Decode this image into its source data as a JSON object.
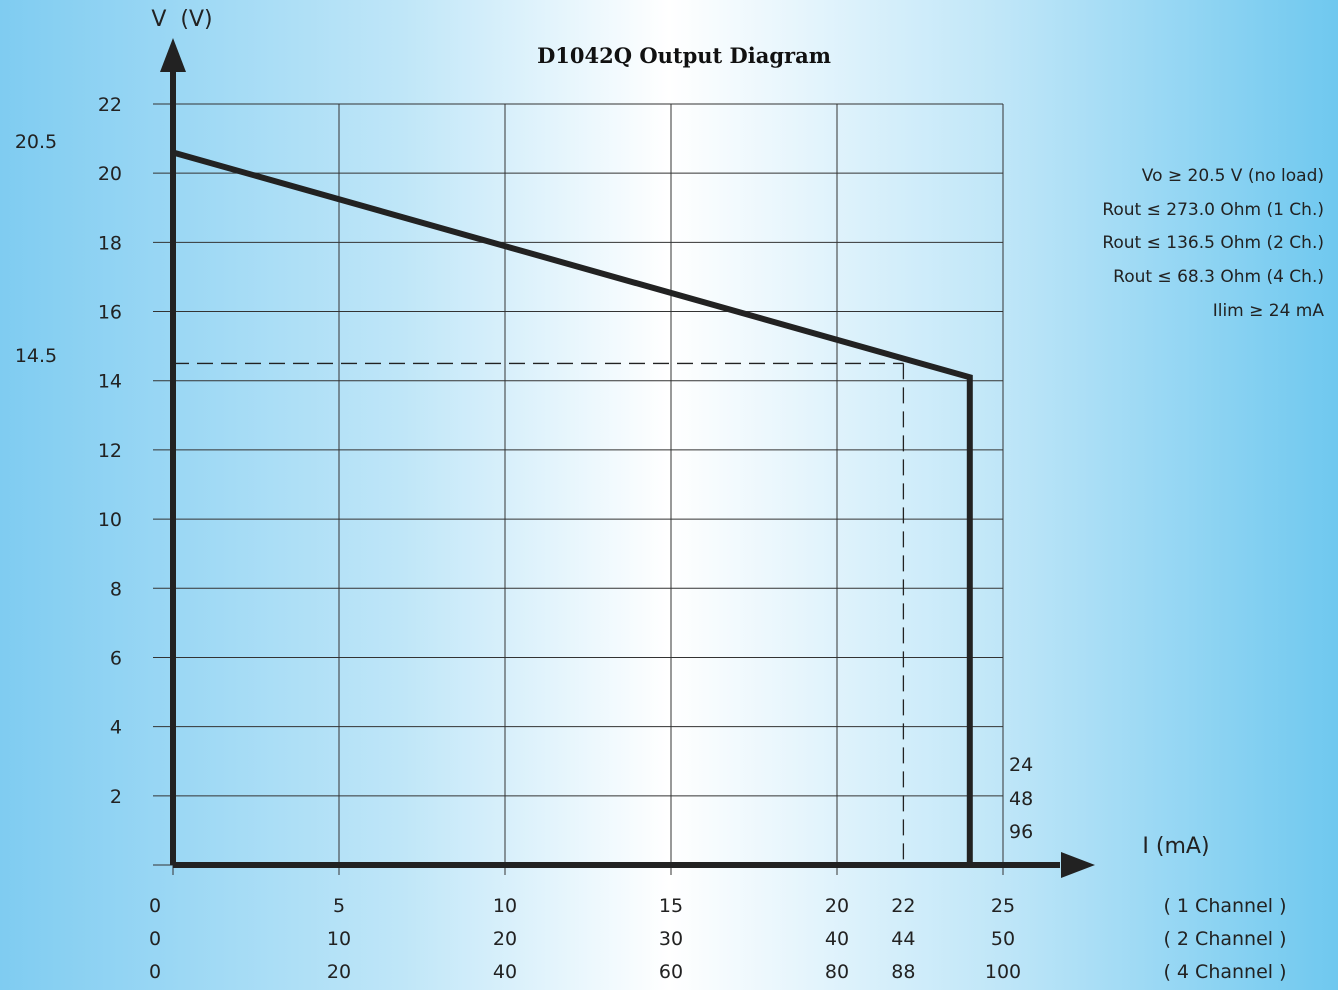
{
  "colors": {
    "background_mid": "#ffffff",
    "background_edge": "#6fc8ef",
    "line": "#222222",
    "grid": "#333333"
  },
  "chart_data": {
    "type": "line",
    "title": "D1042Q Output Diagram",
    "ylabel": "V  (V)",
    "xlabel": "I (mA)",
    "xlim": [
      0,
      25
    ],
    "ylim": [
      0,
      22
    ],
    "y_ticks": [
      "22",
      "20",
      "18",
      "16",
      "14",
      "12",
      "10",
      "8",
      "6",
      "4",
      "2"
    ],
    "y_tick_values": [
      22,
      20,
      18,
      16,
      14,
      12,
      10,
      8,
      6,
      4,
      2
    ],
    "y_markers": [
      {
        "label": "20.5",
        "value": 20.5
      },
      {
        "label": "14.5",
        "value": 14.5
      }
    ],
    "x_tick_values": [
      0,
      5,
      10,
      15,
      20,
      22,
      25
    ],
    "x_tick_rows": [
      {
        "labels": [
          "0",
          "5",
          "10",
          "15",
          "20",
          "22",
          "25"
        ],
        "caption": "( 1 Channel )"
      },
      {
        "labels": [
          "0",
          "10",
          "20",
          "30",
          "40",
          "44",
          "50"
        ],
        "caption": "( 2 Channel )"
      },
      {
        "labels": [
          "0",
          "20",
          "40",
          "60",
          "80",
          "88",
          "100"
        ],
        "caption": "( 4 Channel )"
      }
    ],
    "limit_labels": [
      "24",
      "48",
      "96"
    ],
    "series": [
      {
        "x": [
          0,
          0,
          24,
          24
        ],
        "y": [
          0,
          20.6,
          14.1,
          0
        ]
      }
    ],
    "reference_point": {
      "x": 22,
      "y": 14.5
    },
    "annotations": [
      "Vo ≥ 20.5 V (no load)",
      "Rout ≤ 273.0 Ohm (1 Ch.)",
      "Rout ≤ 136.5 Ohm (2 Ch.)",
      "Rout ≤ 68.3 Ohm (4 Ch.)",
      "Ilim ≥ 24 mA"
    ],
    "grid": true
  }
}
